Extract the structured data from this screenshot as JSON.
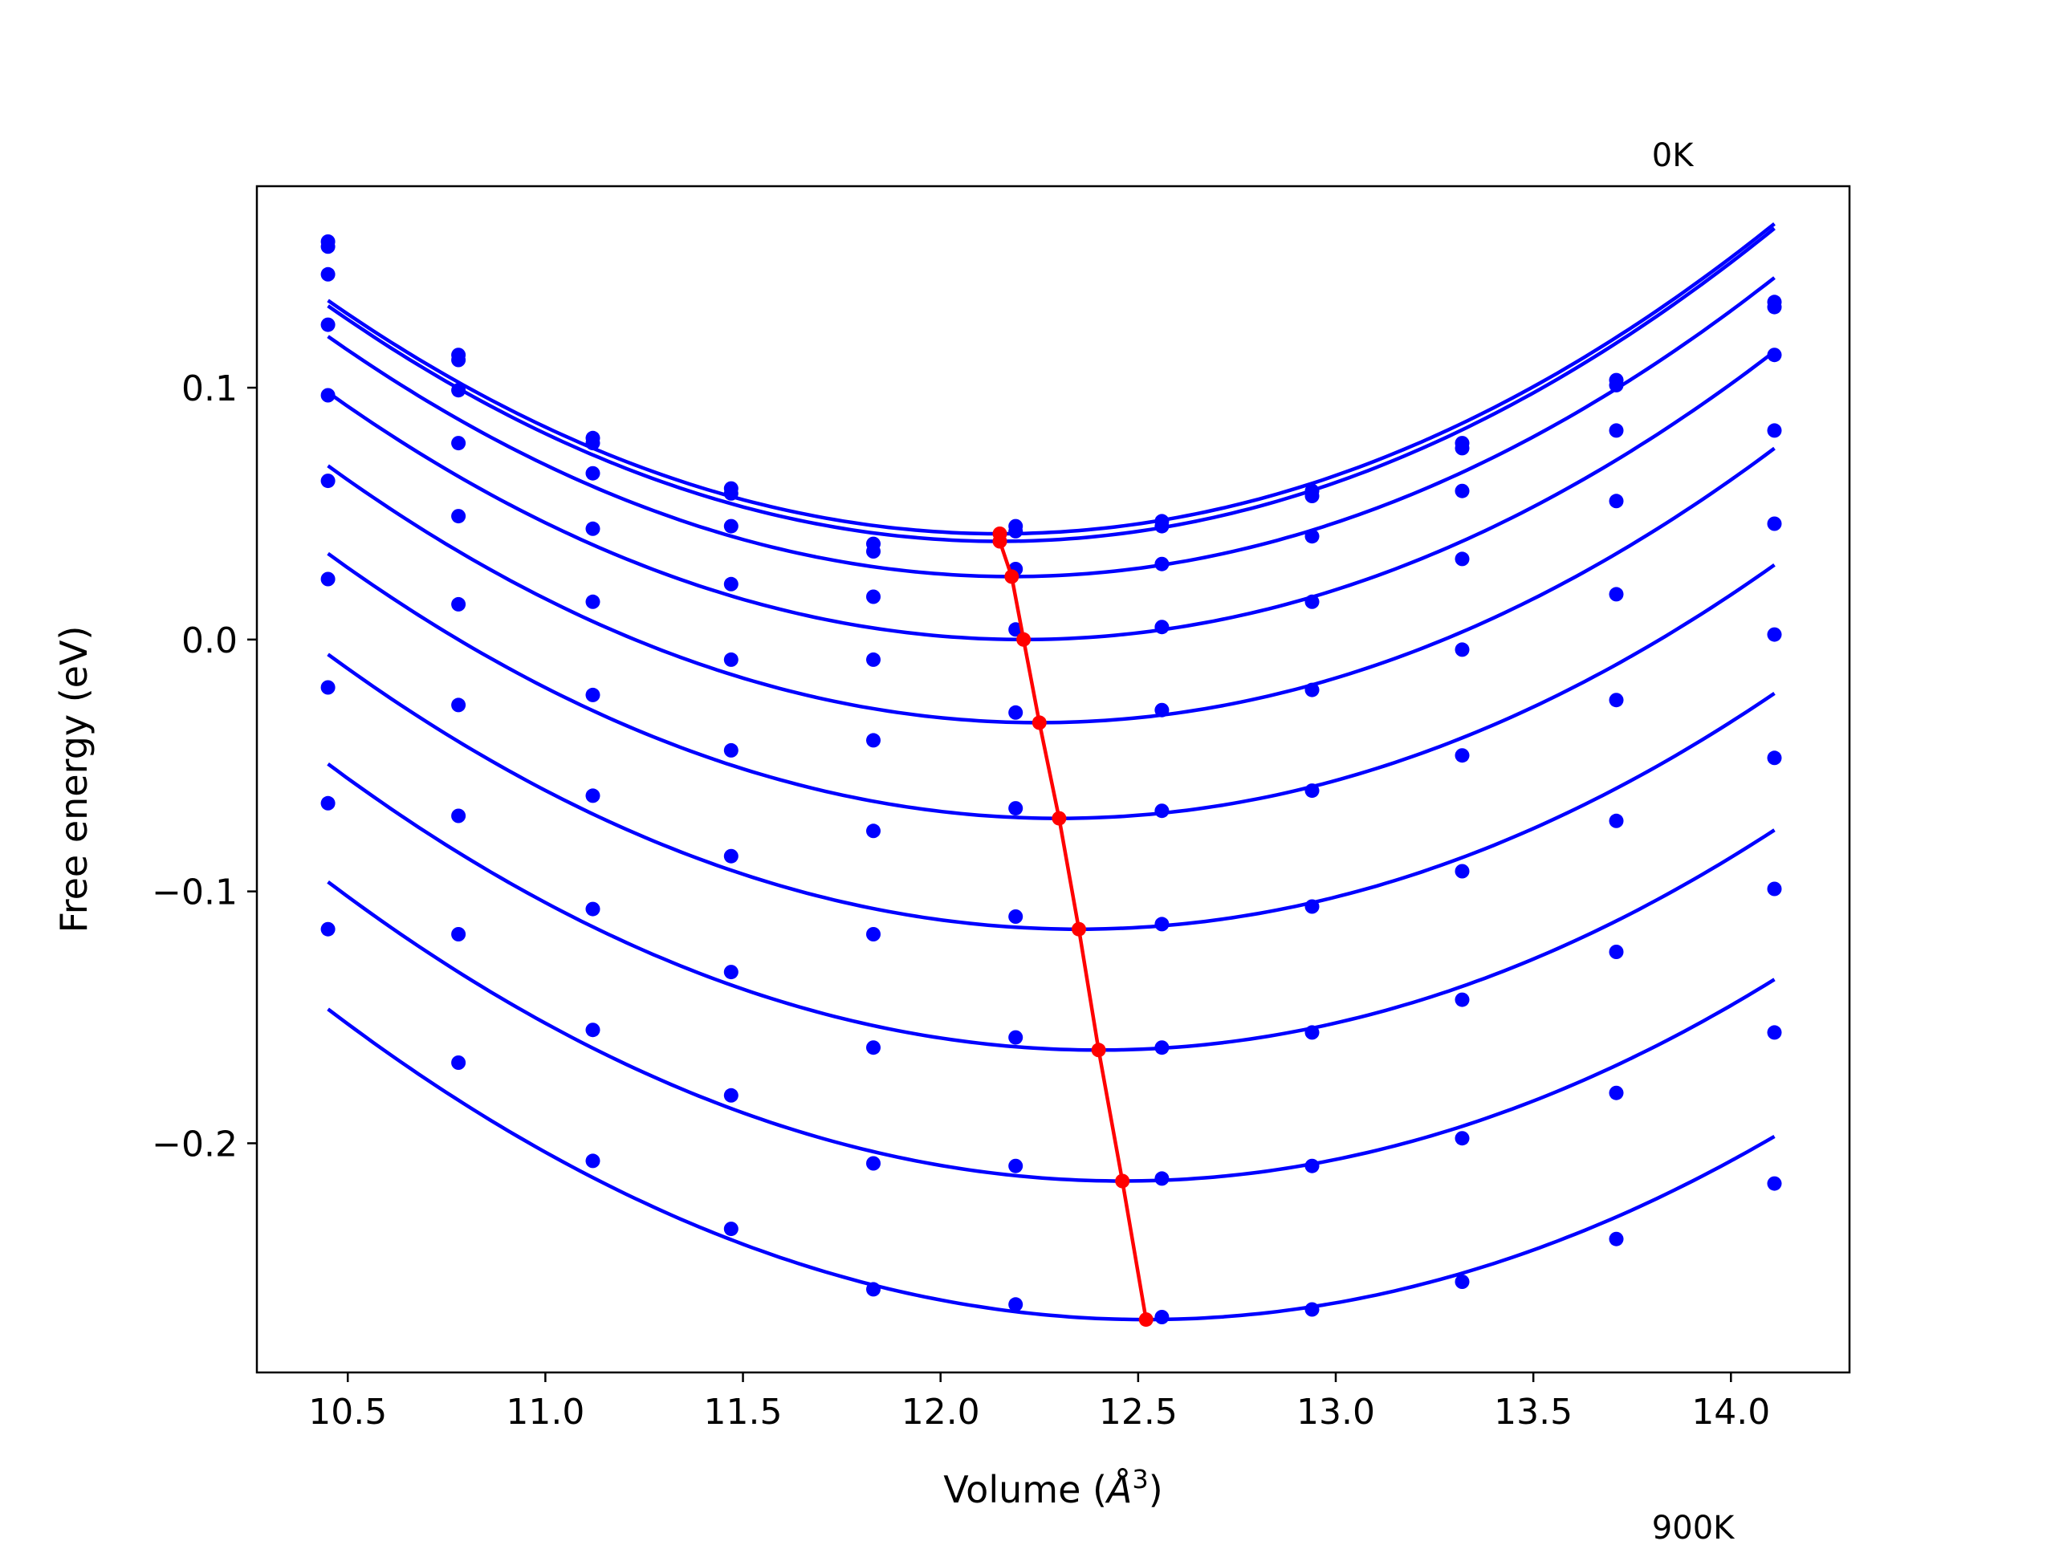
{
  "chart_data": {
    "type": "line",
    "xlabel": "Volume (",
    "xlabel_symbol": "Å",
    "xlabel_sup": "3",
    "xlabel_close": ")",
    "ylabel": "Free energy (eV)",
    "xlim": [
      10.27,
      14.3
    ],
    "ylim": [
      -0.291,
      0.18
    ],
    "xticks": [
      10.5,
      11.0,
      11.5,
      12.0,
      12.5,
      13.0,
      13.5,
      14.0
    ],
    "xtick_labels": [
      "10.5",
      "11.0",
      "11.5",
      "12.0",
      "12.5",
      "13.0",
      "13.5",
      "14.0"
    ],
    "yticks": [
      0.1,
      0.0,
      -0.1,
      -0.2
    ],
    "ytick_labels": [
      "0.1",
      "0.0",
      "−0.1",
      "−0.2"
    ],
    "annotations": [
      {
        "text": "0K",
        "x": 13.8,
        "y": 0.188
      },
      {
        "text": "900K",
        "x": 13.8,
        "y": -0.357
      }
    ],
    "colors": {
      "curves": "#0000ff",
      "points": "#0000ff",
      "minima": "#ff0000"
    },
    "x": [
      10.45,
      10.78,
      11.12,
      11.47,
      11.83,
      12.19,
      12.56,
      12.94,
      13.32,
      13.71,
      14.11
    ],
    "series": [
      {
        "values": [
          0.158,
          0.113,
          0.08,
          0.06,
          0.038,
          0.045,
          0.047,
          0.059,
          0.078,
          0.103,
          0.134
        ]
      },
      {
        "values": [
          0.156,
          0.111,
          0.078,
          0.058,
          0.035,
          0.043,
          0.045,
          0.057,
          0.076,
          0.101,
          0.132
        ]
      },
      {
        "values": [
          0.145,
          0.099,
          0.066,
          0.045,
          0.017,
          0.028,
          0.03,
          0.041,
          0.059,
          0.083,
          0.113
        ]
      },
      {
        "values": [
          0.125,
          0.078,
          0.044,
          0.022,
          -0.008,
          0.004,
          0.005,
          0.015,
          0.032,
          0.055,
          0.083
        ]
      },
      {
        "values": [
          0.097,
          0.049,
          0.015,
          -0.008,
          -0.04,
          -0.029,
          -0.028,
          -0.02,
          -0.004,
          0.018,
          0.046
        ]
      },
      {
        "values": [
          0.063,
          0.014,
          -0.022,
          -0.044,
          -0.076,
          -0.067,
          -0.068,
          -0.06,
          -0.046,
          -0.024,
          0.002
        ]
      },
      {
        "values": [
          0.024,
          -0.026,
          -0.062,
          -0.086,
          -0.117,
          -0.11,
          -0.113,
          -0.106,
          -0.092,
          -0.072,
          -0.047
        ]
      },
      {
        "values": [
          -0.019,
          -0.07,
          -0.107,
          -0.132,
          -0.162,
          -0.158,
          -0.162,
          -0.156,
          -0.143,
          -0.124,
          -0.099
        ]
      },
      {
        "values": [
          -0.065,
          -0.117,
          -0.155,
          -0.181,
          -0.208,
          -0.209,
          -0.214,
          -0.209,
          -0.198,
          -0.18,
          -0.156
        ]
      },
      {
        "values": [
          -0.115,
          -0.168,
          -0.207,
          -0.234,
          -0.258,
          -0.264,
          -0.269,
          -0.266,
          -0.255,
          -0.238,
          -0.216
        ]
      }
    ],
    "fit_minima": [
      {
        "x": 12.15,
        "y": 0.042
      },
      {
        "x": 12.15,
        "y": 0.039
      },
      {
        "x": 12.18,
        "y": 0.025
      },
      {
        "x": 12.21,
        "y": 0.0
      },
      {
        "x": 12.25,
        "y": -0.033
      },
      {
        "x": 12.3,
        "y": -0.071
      },
      {
        "x": 12.35,
        "y": -0.115
      },
      {
        "x": 12.4,
        "y": -0.163
      },
      {
        "x": 12.46,
        "y": -0.215
      },
      {
        "x": 12.52,
        "y": -0.27
      }
    ]
  }
}
